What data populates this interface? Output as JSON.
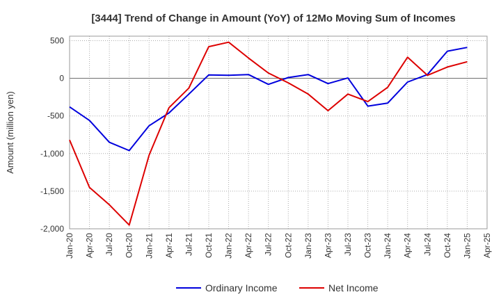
{
  "chart_data": {
    "type": "line",
    "title": "[3444]  Trend of Change in Amount (YoY) of 12Mo Moving Sum of Incomes",
    "ylabel": "Amount (million yen)",
    "xlabel": "",
    "ylim": [
      -2000,
      560
    ],
    "yticks": [
      500,
      0,
      -500,
      -1000,
      -1500,
      -2000
    ],
    "ytick_labels": [
      "500",
      "0",
      "-500",
      "-1,000",
      "-1,500",
      "-2,000"
    ],
    "xticks": [
      "Jan-20",
      "Apr-20",
      "Jul-20",
      "Oct-20",
      "Jan-21",
      "Apr-21",
      "Jul-21",
      "Oct-21",
      "Jan-22",
      "Apr-22",
      "Jul-22",
      "Oct-22",
      "Jan-23",
      "Apr-23",
      "Jul-23",
      "Oct-23",
      "Jan-24",
      "Apr-24",
      "Jul-24",
      "Oct-24",
      "Jan-25",
      "Apr-25"
    ],
    "x": [
      "Jan-20",
      "Apr-20",
      "Jul-20",
      "Oct-20",
      "Jan-21",
      "Apr-21",
      "Jul-21",
      "Oct-21",
      "Jan-22",
      "Apr-22",
      "Jul-22",
      "Oct-22",
      "Jan-23",
      "Apr-23",
      "Jul-23",
      "Oct-23",
      "Jan-24",
      "Apr-24",
      "Jul-24",
      "Oct-24",
      "Jan-25"
    ],
    "grid": true,
    "legend_position": "bottom-center",
    "series": [
      {
        "name": "Ordinary Income",
        "color": "#0000dd",
        "values": [
          -380,
          -560,
          -850,
          -960,
          -630,
          -460,
          -210,
          45,
          40,
          50,
          -80,
          10,
          50,
          -70,
          5,
          -370,
          -330,
          -50,
          50,
          360,
          410
        ]
      },
      {
        "name": "Net Income",
        "color": "#dd0000",
        "values": [
          -820,
          -1450,
          -1680,
          -1950,
          -1020,
          -390,
          -130,
          420,
          480,
          270,
          70,
          -60,
          -210,
          -430,
          -210,
          -310,
          -120,
          280,
          40,
          150,
          220
        ]
      }
    ]
  }
}
